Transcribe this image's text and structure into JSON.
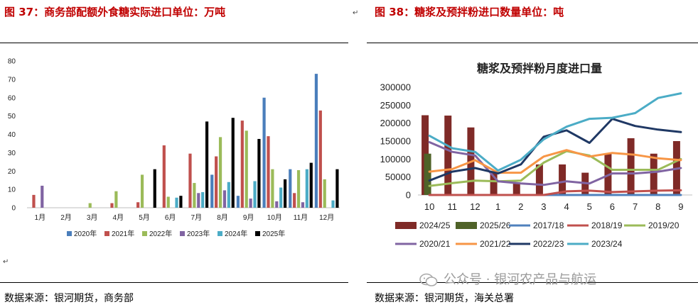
{
  "left_panel": {
    "title": "图 37：商务部配额外食糖实际进口单位：万吨",
    "source": "数据来源：银河期货，商务部"
  },
  "right_panel": {
    "title": "图 38：糖浆及预拌粉进口数量单位：吨",
    "source": "数据来源：银河期货，海关总署"
  },
  "watermark": {
    "text": "公众号 · 银河农产品与航运",
    "icon": "wechat-icon"
  },
  "colors": {
    "title_red": "#c00000"
  },
  "chart_data": [
    {
      "type": "bar",
      "title": "",
      "xlabel": "",
      "ylabel": "",
      "ylim": [
        0,
        80
      ],
      "yticks": [
        0,
        10,
        20,
        30,
        40,
        50,
        60,
        70,
        80
      ],
      "categories": [
        "1月",
        "2月",
        "3月",
        "4月",
        "5月",
        "6月",
        "7月",
        "8月",
        "9月",
        "10月",
        "11月",
        "12月"
      ],
      "legend_position": "bottom",
      "series": [
        {
          "name": "2020年",
          "color": "#4a7ebb",
          "values": [
            0,
            0,
            0,
            0,
            0,
            0,
            0,
            18,
            6.5,
            60,
            21,
            73
          ]
        },
        {
          "name": "2021年",
          "color": "#c0504d",
          "values": [
            7,
            0,
            0,
            2.5,
            3,
            34,
            29.5,
            28,
            47.5,
            39,
            8,
            53
          ]
        },
        {
          "name": "2022年",
          "color": "#9bbb59",
          "values": [
            0,
            0,
            2.5,
            9,
            18,
            6,
            13.5,
            38.5,
            42,
            21,
            20.5,
            15.5
          ]
        },
        {
          "name": "2023年",
          "color": "#8064a2",
          "values": [
            12,
            0,
            0,
            0,
            0,
            0,
            8,
            9.5,
            5,
            3.5,
            3,
            0
          ]
        },
        {
          "name": "2024年",
          "color": "#4bacc6",
          "values": [
            0,
            0,
            0,
            0,
            0,
            5.5,
            8.5,
            14,
            14.5,
            11,
            21,
            4
          ]
        },
        {
          "name": "2025年",
          "color": "#000000",
          "values": [
            0,
            0,
            0,
            0,
            21,
            6.5,
            47,
            49,
            37.5,
            15.5,
            24.5,
            21
          ]
        }
      ]
    },
    {
      "type": "bar+line",
      "title": "糖浆及预拌粉月度进口量",
      "xlabel": "",
      "ylabel": "",
      "ylim": [
        0,
        300000
      ],
      "yticks": [
        0,
        50000,
        100000,
        150000,
        200000,
        250000,
        300000
      ],
      "ytick_labels": [
        "0",
        "50000",
        "100000",
        "150000",
        "200000",
        "250000",
        "300000"
      ],
      "categories": [
        "10",
        "11",
        "12",
        "1",
        "2",
        "3",
        "4",
        "5",
        "6",
        "7",
        "8",
        "9"
      ],
      "legend_position": "bottom",
      "bar_series": [
        {
          "name": "2024/25",
          "color": "#7f2a27",
          "values": [
            222000,
            221000,
            188000,
            65000,
            35000,
            85000,
            85000,
            62000,
            115000,
            158000,
            115000,
            150000
          ]
        },
        {
          "name": "2025/26",
          "color": "#4f6228",
          "values": [
            115000,
            0,
            0,
            0,
            0,
            0,
            0,
            0,
            0,
            0,
            0,
            0
          ]
        }
      ],
      "line_series": [
        {
          "name": "2017/18",
          "color": "#4f81bd",
          "values": [
            0,
            0,
            0,
            0,
            0,
            0,
            0,
            0,
            0,
            0,
            0,
            0
          ]
        },
        {
          "name": "2018/19",
          "color": "#c0504d",
          "values": [
            0,
            0,
            0,
            0,
            0,
            0,
            10000,
            12000,
            8000,
            10000,
            12000,
            13000
          ]
        },
        {
          "name": "2019/20",
          "color": "#9bbb59",
          "values": [
            25000,
            33000,
            40000,
            38000,
            40000,
            90000,
            122000,
            110000,
            70000,
            70000,
            70000,
            100000
          ]
        },
        {
          "name": "2020/21",
          "color": "#8064a2",
          "values": [
            147000,
            120000,
            110000,
            38000,
            32000,
            28000,
            38000,
            32000,
            60000,
            60000,
            65000,
            75000
          ]
        },
        {
          "name": "2021/22",
          "color": "#f79646",
          "values": [
            65000,
            72000,
            97000,
            62000,
            62000,
            107000,
            125000,
            107000,
            117000,
            112000,
            102000,
            97000
          ]
        },
        {
          "name": "2022/23",
          "color": "#1f3864",
          "values": [
            40000,
            65000,
            75000,
            60000,
            85000,
            162000,
            180000,
            145000,
            212000,
            192000,
            182000,
            175000
          ]
        },
        {
          "name": "2023/24",
          "color": "#4bacc6",
          "values": [
            165000,
            130000,
            120000,
            68000,
            98000,
            155000,
            190000,
            212000,
            215000,
            228000,
            270000,
            283000
          ]
        }
      ]
    }
  ]
}
